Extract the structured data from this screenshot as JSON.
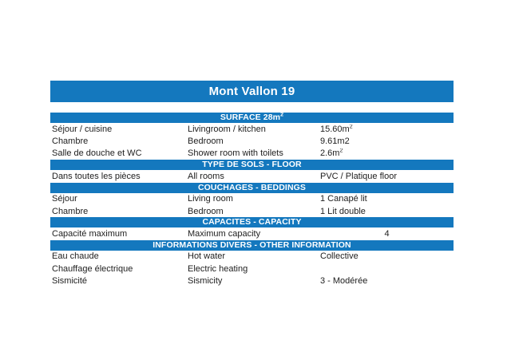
{
  "accent": "#1478BE",
  "page": {
    "title_bar": "Mont Vallon 19"
  },
  "sections": [
    {
      "header": {
        "text": "SURFACE 28m",
        "sup": "2"
      },
      "rows": [
        {
          "fr": "Séjour / cuisine",
          "en": "Livingroom / kitchen",
          "value": "15.60m",
          "value_sup": "2"
        },
        {
          "fr": "Chambre",
          "en": "Bedroom",
          "value": "9.61m2",
          "value_sup": ""
        },
        {
          "fr": "Salle de douche et WC",
          "en": "Shower room with toilets",
          "value": "2.6m",
          "value_sup": "2"
        }
      ]
    },
    {
      "header": {
        "text": "TYPE DE SOLS - FLOOR",
        "sup": ""
      },
      "rows": [
        {
          "fr": "Dans toutes les pièces",
          "en": "All rooms",
          "value": "PVC / Platique floor",
          "value_sup": ""
        }
      ]
    },
    {
      "header": {
        "text": "COUCHAGES - BEDDINGS",
        "sup": ""
      },
      "rows": [
        {
          "fr": "Séjour",
          "en": "Living room",
          "value": "1 Canapé lit",
          "value_sup": ""
        },
        {
          "fr": "Chambre",
          "en": "Bedroom",
          "value": "1 Lit double",
          "value_sup": ""
        }
      ]
    },
    {
      "header": {
        "text": "CAPACITES - CAPACITY",
        "sup": ""
      },
      "rows": [
        {
          "fr": "Capacité maximum",
          "en": "Maximum capacity",
          "value": "4",
          "value_sup": ""
        }
      ]
    },
    {
      "header": {
        "text": "INFORMATIONS DIVERS - OTHER INFORMATION",
        "sup": ""
      },
      "rows": [
        {
          "fr": "Eau chaude",
          "en": "Hot water",
          "value": "Collective",
          "value_sup": ""
        },
        {
          "fr": "Chauffage électrique",
          "en": "Electric heating",
          "value": "",
          "value_sup": ""
        },
        {
          "fr": "Sismicité",
          "en": "Sismicity",
          "value": "3 - Modérée",
          "value_sup": ""
        }
      ]
    }
  ]
}
